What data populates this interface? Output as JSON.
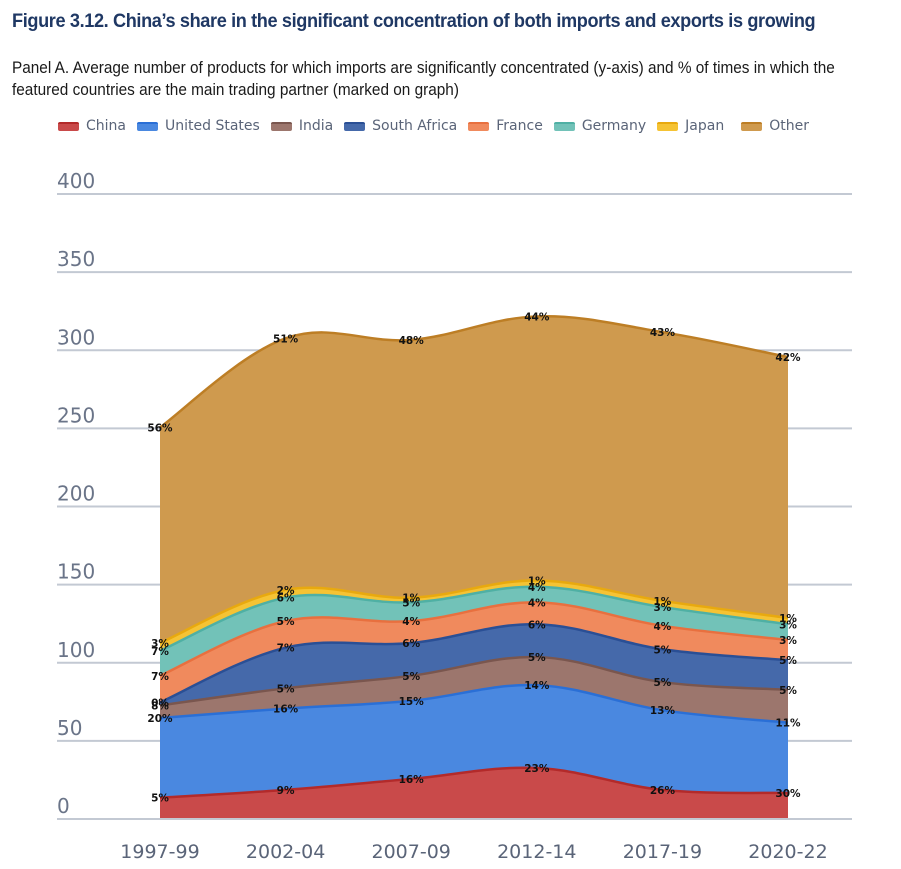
{
  "figure": {
    "title": "Figure 3.12. China’s share in the significant concentration of both imports and exports is growing",
    "subtitle": "Panel A. Average number of products for which imports are significantly concentrated (y-axis) and % of times in which the featured countries are the main trading partner (marked on graph)"
  },
  "chart_data": {
    "type": "area",
    "stacked": true,
    "title": "Panel A. Average number of products for which imports are significantly concentrated (y-axis) and % of times in which the featured countries are the main trading partner (marked on graph)",
    "xlabel": "",
    "ylabel": "",
    "categories": [
      "1997-99",
      "2002-04",
      "2007-09",
      "2012-14",
      "2017-19",
      "2020-22"
    ],
    "ylim": [
      0,
      400
    ],
    "yticks": [
      0,
      50,
      100,
      150,
      200,
      250,
      300,
      350,
      400
    ],
    "grid": true,
    "legend_position": "top",
    "series": [
      {
        "name": "China",
        "color": "#c94a4a",
        "line": "#b32a2a",
        "values": [
          13,
          18,
          25,
          32,
          18,
          16
        ],
        "labels": [
          "5%",
          "9%",
          "16%",
          "23%",
          "26%",
          "30%"
        ]
      },
      {
        "name": "United States",
        "color": "#4a88e0",
        "line": "#2a6fd6",
        "values": [
          51,
          52,
          50,
          53,
          51,
          45
        ],
        "labels": [
          "20%",
          "16%",
          "15%",
          "14%",
          "13%",
          "11%"
        ]
      },
      {
        "name": "India",
        "color": "#9c766d",
        "line": "#7a564e",
        "values": [
          8,
          13,
          16,
          18,
          18,
          21
        ],
        "labels": [
          "8%",
          "5%",
          "5%",
          "5%",
          "5%",
          "5%"
        ]
      },
      {
        "name": "South Africa",
        "color": "#4569aa",
        "line": "#2a4f95",
        "values": [
          2,
          26,
          21,
          21,
          21,
          19
        ],
        "labels": [
          "0%",
          "7%",
          "6%",
          "6%",
          "5%",
          "5%"
        ]
      },
      {
        "name": "France",
        "color": "#f08a5d",
        "line": "#e8703f",
        "values": [
          17,
          17,
          14,
          14,
          15,
          13
        ],
        "labels": [
          "7%",
          "5%",
          "4%",
          "4%",
          "4%",
          "3%"
        ]
      },
      {
        "name": "Germany",
        "color": "#72c2b8",
        "line": "#4fb0a4",
        "values": [
          16,
          15,
          12,
          10,
          12,
          10
        ],
        "labels": [
          "7%",
          "6%",
          "5%",
          "4%",
          "3%",
          "3%"
        ]
      },
      {
        "name": "Japan",
        "color": "#f5c334",
        "line": "#e8a90f",
        "values": [
          5,
          5,
          3,
          4,
          4,
          4
        ],
        "labels": [
          "3%",
          "2%",
          "1%",
          "1%",
          "1%",
          "1%"
        ]
      },
      {
        "name": "Other",
        "color": "#cf9a4e",
        "line": "#bd7e25",
        "values": [
          138,
          161,
          165,
          169,
          172,
          167
        ],
        "labels": [
          "56%",
          "51%",
          "48%",
          "44%",
          "43%",
          "42%"
        ]
      }
    ]
  }
}
